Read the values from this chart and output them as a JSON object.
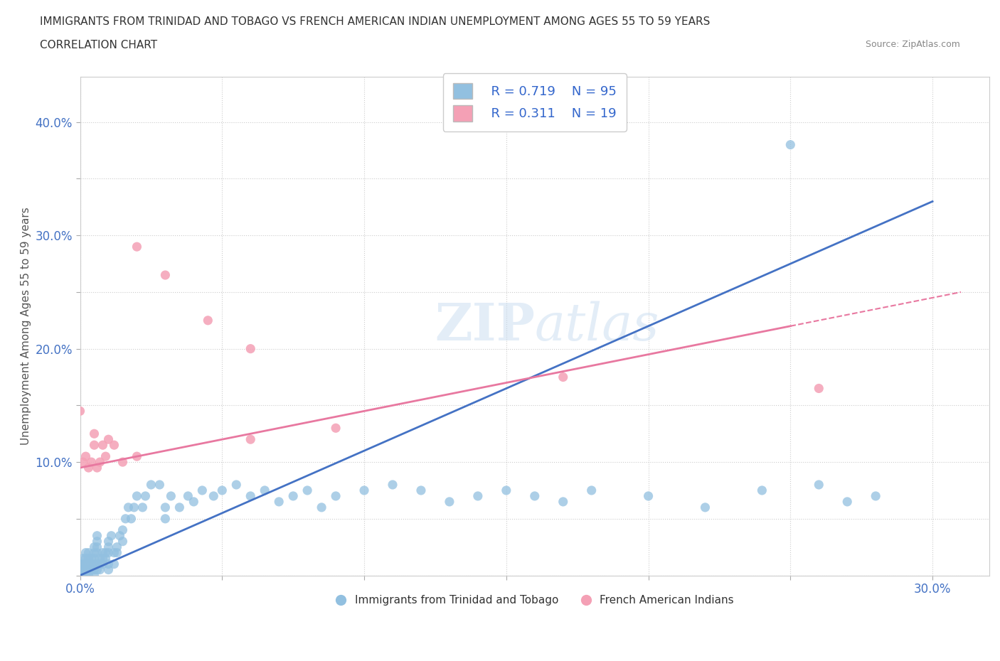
{
  "title_line1": "IMMIGRANTS FROM TRINIDAD AND TOBAGO VS FRENCH AMERICAN INDIAN UNEMPLOYMENT AMONG AGES 55 TO 59 YEARS",
  "title_line2": "CORRELATION CHART",
  "source_text": "Source: ZipAtlas.com",
  "ylabel": "Unemployment Among Ages 55 to 59 years",
  "xlim": [
    0.0,
    0.32
  ],
  "ylim": [
    0.0,
    0.44
  ],
  "blue_R": 0.719,
  "blue_N": 95,
  "pink_R": 0.311,
  "pink_N": 19,
  "blue_color": "#92C0E0",
  "pink_color": "#F4A0B5",
  "blue_line_color": "#4472C4",
  "pink_line_color": "#E878A0",
  "watermark_color": "#C8DCF0",
  "blue_scatter": [
    [
      0.0,
      0.0
    ],
    [
      0.0,
      0.005
    ],
    [
      0.0,
      0.01
    ],
    [
      0.001,
      0.0
    ],
    [
      0.001,
      0.005
    ],
    [
      0.001,
      0.01
    ],
    [
      0.001,
      0.015
    ],
    [
      0.002,
      0.0
    ],
    [
      0.002,
      0.005
    ],
    [
      0.002,
      0.01
    ],
    [
      0.002,
      0.015
    ],
    [
      0.002,
      0.02
    ],
    [
      0.003,
      0.0
    ],
    [
      0.003,
      0.005
    ],
    [
      0.003,
      0.01
    ],
    [
      0.003,
      0.015
    ],
    [
      0.003,
      0.02
    ],
    [
      0.004,
      0.005
    ],
    [
      0.004,
      0.01
    ],
    [
      0.004,
      0.015
    ],
    [
      0.005,
      0.0
    ],
    [
      0.005,
      0.005
    ],
    [
      0.005,
      0.01
    ],
    [
      0.005,
      0.015
    ],
    [
      0.005,
      0.02
    ],
    [
      0.005,
      0.025
    ],
    [
      0.006,
      0.005
    ],
    [
      0.006,
      0.01
    ],
    [
      0.006,
      0.02
    ],
    [
      0.006,
      0.025
    ],
    [
      0.006,
      0.03
    ],
    [
      0.006,
      0.035
    ],
    [
      0.007,
      0.005
    ],
    [
      0.007,
      0.01
    ],
    [
      0.007,
      0.015
    ],
    [
      0.008,
      0.01
    ],
    [
      0.008,
      0.015
    ],
    [
      0.008,
      0.02
    ],
    [
      0.009,
      0.015
    ],
    [
      0.009,
      0.02
    ],
    [
      0.01,
      0.005
    ],
    [
      0.01,
      0.01
    ],
    [
      0.01,
      0.02
    ],
    [
      0.01,
      0.025
    ],
    [
      0.01,
      0.03
    ],
    [
      0.011,
      0.035
    ],
    [
      0.012,
      0.01
    ],
    [
      0.012,
      0.02
    ],
    [
      0.013,
      0.02
    ],
    [
      0.013,
      0.025
    ],
    [
      0.014,
      0.035
    ],
    [
      0.015,
      0.03
    ],
    [
      0.015,
      0.04
    ],
    [
      0.016,
      0.05
    ],
    [
      0.017,
      0.06
    ],
    [
      0.018,
      0.05
    ],
    [
      0.019,
      0.06
    ],
    [
      0.02,
      0.07
    ],
    [
      0.022,
      0.06
    ],
    [
      0.023,
      0.07
    ],
    [
      0.025,
      0.08
    ],
    [
      0.028,
      0.08
    ],
    [
      0.03,
      0.05
    ],
    [
      0.03,
      0.06
    ],
    [
      0.032,
      0.07
    ],
    [
      0.035,
      0.06
    ],
    [
      0.038,
      0.07
    ],
    [
      0.04,
      0.065
    ],
    [
      0.043,
      0.075
    ],
    [
      0.047,
      0.07
    ],
    [
      0.05,
      0.075
    ],
    [
      0.055,
      0.08
    ],
    [
      0.06,
      0.07
    ],
    [
      0.065,
      0.075
    ],
    [
      0.07,
      0.065
    ],
    [
      0.075,
      0.07
    ],
    [
      0.08,
      0.075
    ],
    [
      0.085,
      0.06
    ],
    [
      0.09,
      0.07
    ],
    [
      0.1,
      0.075
    ],
    [
      0.11,
      0.08
    ],
    [
      0.12,
      0.075
    ],
    [
      0.13,
      0.065
    ],
    [
      0.14,
      0.07
    ],
    [
      0.15,
      0.075
    ],
    [
      0.16,
      0.07
    ],
    [
      0.17,
      0.065
    ],
    [
      0.18,
      0.075
    ],
    [
      0.2,
      0.07
    ],
    [
      0.22,
      0.06
    ],
    [
      0.24,
      0.075
    ],
    [
      0.25,
      0.38
    ],
    [
      0.26,
      0.08
    ],
    [
      0.27,
      0.065
    ],
    [
      0.28,
      0.07
    ]
  ],
  "pink_scatter": [
    [
      0.0,
      0.145
    ],
    [
      0.001,
      0.1
    ],
    [
      0.002,
      0.105
    ],
    [
      0.003,
      0.095
    ],
    [
      0.004,
      0.1
    ],
    [
      0.005,
      0.115
    ],
    [
      0.005,
      0.125
    ],
    [
      0.006,
      0.095
    ],
    [
      0.007,
      0.1
    ],
    [
      0.008,
      0.115
    ],
    [
      0.009,
      0.105
    ],
    [
      0.01,
      0.12
    ],
    [
      0.012,
      0.115
    ],
    [
      0.015,
      0.1
    ],
    [
      0.02,
      0.105
    ],
    [
      0.06,
      0.12
    ],
    [
      0.09,
      0.13
    ],
    [
      0.17,
      0.175
    ],
    [
      0.26,
      0.165
    ]
  ],
  "pink_high_scatter": [
    [
      0.02,
      0.29
    ],
    [
      0.03,
      0.265
    ],
    [
      0.045,
      0.225
    ],
    [
      0.06,
      0.2
    ]
  ]
}
